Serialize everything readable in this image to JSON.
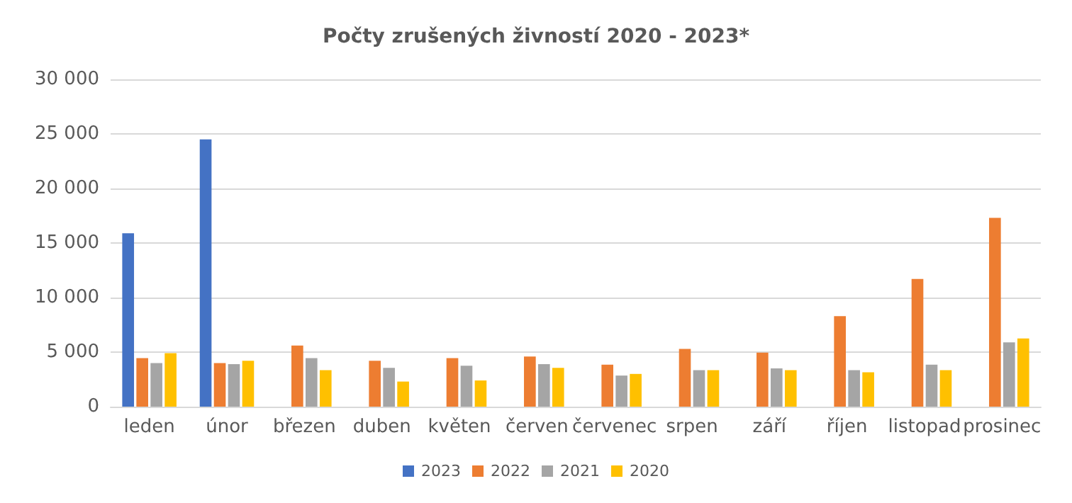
{
  "chart_data": {
    "type": "bar",
    "title": "Počty zrušených živností 2020 - 2023*",
    "categories": [
      "leden",
      "únor",
      "březen",
      "duben",
      "květen",
      "červen",
      "červenec",
      "srpen",
      "září",
      "říjen",
      "listopad",
      "prosinec"
    ],
    "series": [
      {
        "name": "2023",
        "color": "#4472c4",
        "values": [
          15900,
          24500,
          null,
          null,
          null,
          null,
          null,
          null,
          null,
          null,
          null,
          null
        ]
      },
      {
        "name": "2022",
        "color": "#ed7d31",
        "values": [
          4450,
          4000,
          5600,
          4200,
          4450,
          4600,
          3850,
          5300,
          4950,
          8300,
          11700,
          17300
        ]
      },
      {
        "name": "2021",
        "color": "#a5a5a5",
        "values": [
          4000,
          3900,
          4450,
          3550,
          3750,
          3900,
          2850,
          3350,
          3500,
          3350,
          3850,
          5900
        ]
      },
      {
        "name": "2020",
        "color": "#ffc000",
        "values": [
          4900,
          4200,
          3350,
          2300,
          2400,
          3550,
          3000,
          3350,
          3350,
          3150,
          3350,
          6250
        ]
      }
    ],
    "ylim": [
      0,
      30000
    ],
    "yticks": [
      0,
      {
        "value": 5000,
        "label": "5 000"
      },
      {
        "value": 10000,
        "label": "10 000"
      },
      {
        "value": 15000,
        "label": "15 000"
      },
      {
        "value": 20000,
        "label": "20 000"
      },
      {
        "value": 25000,
        "label": "25 000"
      },
      {
        "value": 30000,
        "label": "30 000"
      }
    ],
    "grid": "y",
    "legend": "bottom"
  }
}
